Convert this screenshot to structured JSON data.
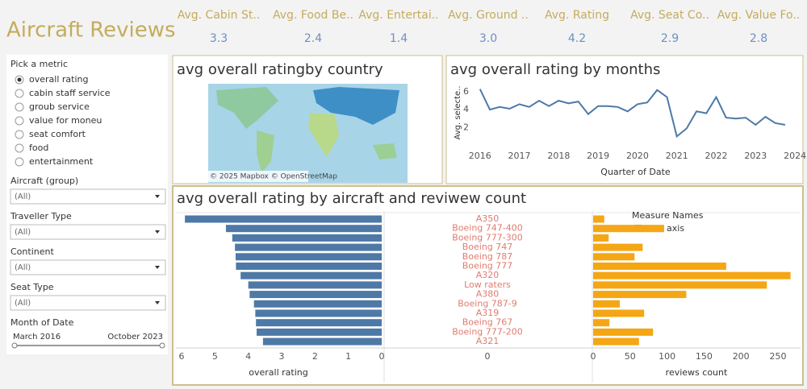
{
  "header": {
    "title": "Aircraft Reviews",
    "kpis": [
      {
        "label": "Avg. Cabin St..",
        "value": "3.3"
      },
      {
        "label": "Avg. Food Be..",
        "value": "2.4"
      },
      {
        "label": "Avg. Entertai..",
        "value": "1.4"
      },
      {
        "label": "Avg. Ground ..",
        "value": "3.0"
      },
      {
        "label": "Avg. Rating",
        "value": "4.2"
      },
      {
        "label": "Avg. Seat Co..",
        "value": "2.9"
      },
      {
        "label": "Avg. Value Fo..",
        "value": "2.8"
      }
    ]
  },
  "sidebar": {
    "metric_title": "Pick a metric",
    "metrics": [
      "overall rating",
      "cabin staff service",
      "groub service",
      "value for moneu",
      "seat comfort",
      "food",
      "entertainment"
    ],
    "selected": 0,
    "filters": [
      {
        "label": "Aircraft (group)",
        "value": "(All)"
      },
      {
        "label": "Traveller Type",
        "value": "(All)"
      },
      {
        "label": "Continent",
        "value": "(All)"
      },
      {
        "label": "Seat Type",
        "value": "(All)"
      }
    ],
    "date_filter": {
      "label": "Month of Date",
      "start": "March 2016",
      "end": "October 2023"
    }
  },
  "map": {
    "title": "avg overall ratingby country",
    "attribution": "© 2025 Mapbox © OpenStreetMap"
  },
  "chart_data": [
    {
      "type": "line",
      "title": "avg overall rating by months",
      "color": "#4e79a7",
      "x": [
        2016,
        2016.25,
        2016.5,
        2016.75,
        2017,
        2017.25,
        2017.5,
        2017.75,
        2018,
        2018.25,
        2018.5,
        2018.75,
        2019,
        2019.25,
        2019.5,
        2019.75,
        2020,
        2020.25,
        2020.5,
        2020.75,
        2021,
        2021.25,
        2021.5,
        2021.75,
        2022,
        2022.25,
        2022.5,
        2022.75,
        2023,
        2023.25,
        2023.5,
        2023.75
      ],
      "values": [
        6.3,
        4.0,
        4.3,
        4.1,
        4.6,
        4.3,
        5.0,
        4.4,
        5.0,
        4.7,
        4.9,
        3.5,
        4.4,
        4.4,
        4.3,
        3.8,
        4.6,
        4.8,
        6.2,
        5.4,
        1.0,
        1.9,
        3.8,
        3.6,
        5.4,
        3.1,
        3.0,
        3.1,
        2.3,
        3.2,
        2.5,
        2.3
      ],
      "xlim": [
        2015.8,
        2024.1
      ],
      "xticks": [
        2016,
        2017,
        2018,
        2019,
        2020,
        2021,
        2022,
        2023,
        2024
      ],
      "ylim": [
        0.5,
        6.8
      ],
      "yticks": [
        2,
        4,
        6
      ],
      "ylabel": "Avg. selecte..",
      "xlabel": "Quarter of Date"
    },
    {
      "type": "barh",
      "title": "avg overall rating by aircraft and reviwew count",
      "color": "#4e79a7",
      "reversed": true,
      "categories": [
        "A350",
        "Boeing 747-400",
        "Boeing 777-300",
        "Boeing 747",
        "Boeing 787",
        "Boeing 777",
        "A320",
        "Low raters",
        "A380",
        "Boeing 787-9",
        "A319",
        "Boeing 767",
        "Boeing 777-200",
        "A321"
      ],
      "values": [
        5.9,
        4.67,
        4.48,
        4.4,
        4.38,
        4.37,
        4.23,
        4.0,
        3.96,
        3.83,
        3.79,
        3.77,
        3.75,
        3.56
      ],
      "xlim": [
        0,
        6.1
      ],
      "xticks": [
        0,
        1,
        2,
        3,
        4,
        5,
        6
      ],
      "xlabel": "overall rating"
    },
    {
      "type": "zero",
      "xticks": [
        0
      ],
      "category_color": "#e07b6f",
      "legend": {
        "title": "Measure Names",
        "items": [
          {
            "name": "zero axis",
            "color": "#e15759"
          }
        ]
      }
    },
    {
      "type": "barh",
      "color": "#f5a614",
      "values": [
        15,
        96,
        21,
        67,
        56,
        180,
        267,
        235,
        126,
        36,
        69,
        22,
        81,
        62
      ],
      "xlim": [
        0,
        270
      ],
      "xticks": [
        0,
        50,
        100,
        150,
        200,
        250
      ],
      "xlabel": "reviews count"
    }
  ]
}
